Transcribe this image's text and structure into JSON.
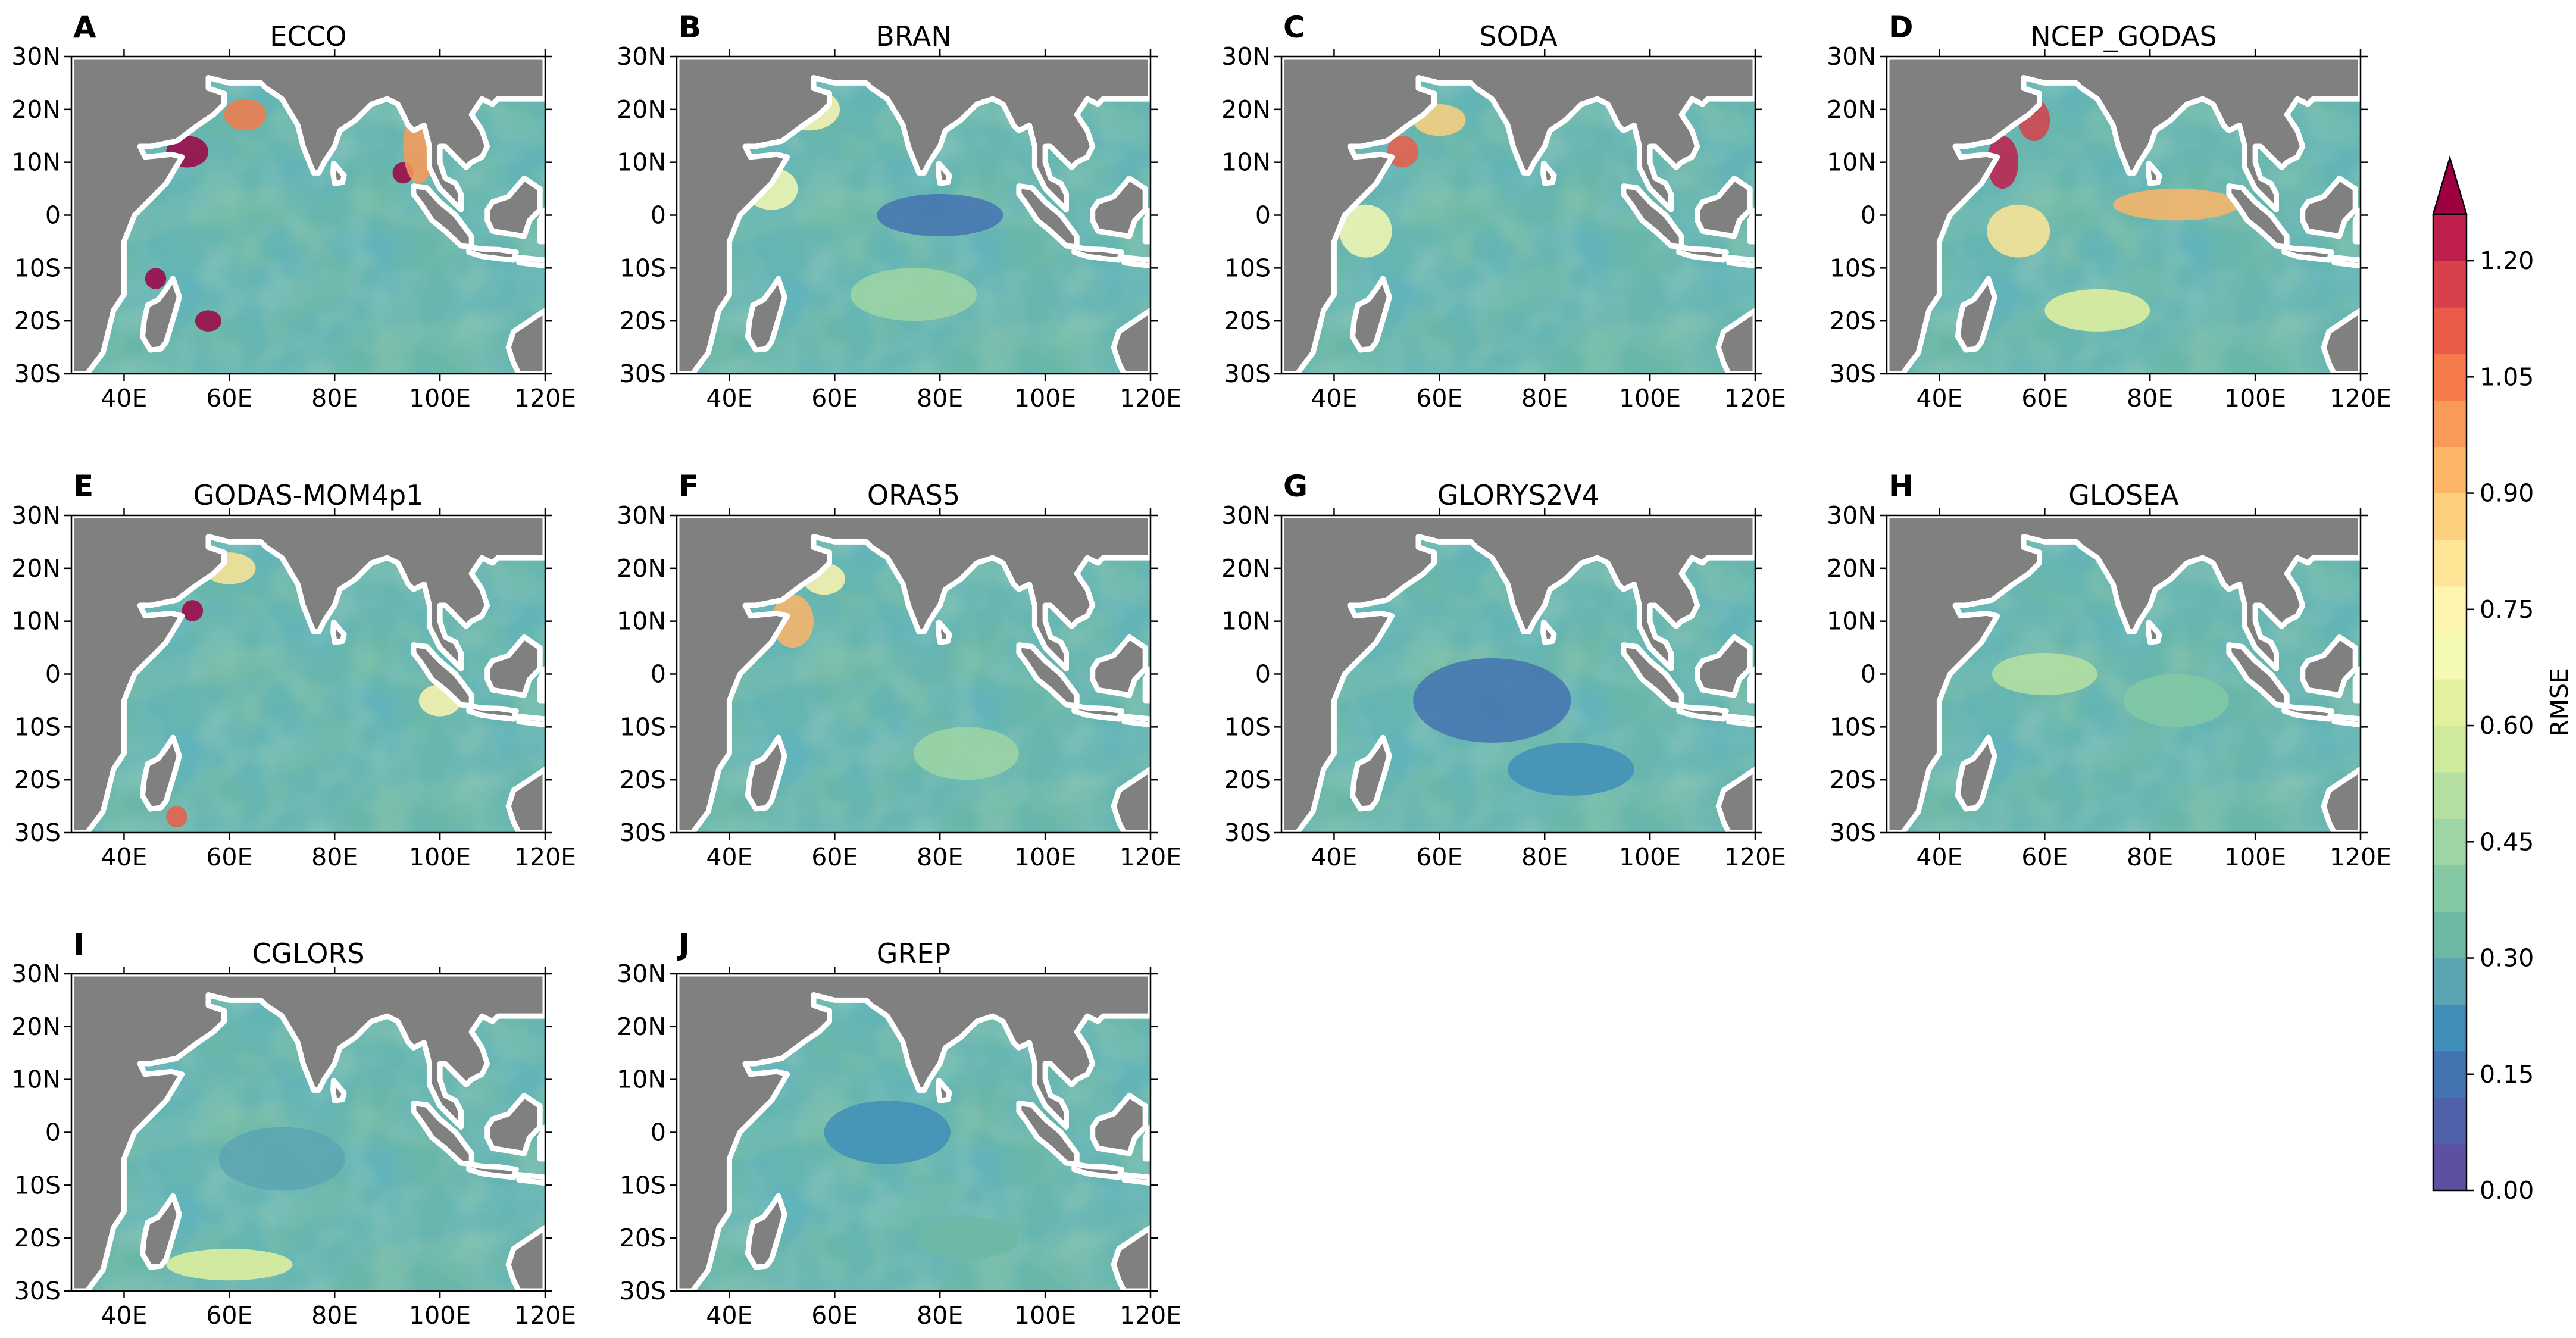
{
  "figure": {
    "colorbar": {
      "label": "RMSE",
      "ticks": [
        "0.00",
        "0.15",
        "0.30",
        "0.45",
        "0.60",
        "0.75",
        "0.90",
        "1.05",
        "1.20"
      ],
      "min": 0.0,
      "max": 1.26,
      "levels": 21,
      "extend": "max",
      "colors": [
        "#5e4fa2",
        "#4f61aa",
        "#4473b2",
        "#3f8fb9",
        "#5aa5b1",
        "#6cb8a4",
        "#84c9a3",
        "#9dd5a4",
        "#b6e0a2",
        "#cdea9f",
        "#e3f19e",
        "#f4f9b4",
        "#fef5b0",
        "#fee595",
        "#fdd07f",
        "#fdb567",
        "#fa9a58",
        "#f57b4a",
        "#ea5c49",
        "#d8404c",
        "#be1f4c",
        "#9e0142"
      ]
    },
    "map": {
      "lon_ticks": [
        "40E",
        "60E",
        "80E",
        "100E",
        "120E"
      ],
      "lat_ticks": [
        "30N",
        "20N",
        "10N",
        "0",
        "10S",
        "20S",
        "30S"
      ],
      "land_color": "#808080",
      "coast_color": "#ffffff"
    },
    "panels": [
      {
        "letter": "A",
        "title": "ECCO"
      },
      {
        "letter": "B",
        "title": "BRAN"
      },
      {
        "letter": "C",
        "title": "SODA"
      },
      {
        "letter": "D",
        "title": "NCEP_GODAS"
      },
      {
        "letter": "E",
        "title": "GODAS-MOM4p1"
      },
      {
        "letter": "F",
        "title": "ORAS5"
      },
      {
        "letter": "G",
        "title": "GLORYS2V4"
      },
      {
        "letter": "H",
        "title": "GLOSEA"
      },
      {
        "letter": "I",
        "title": "CGLORS"
      },
      {
        "letter": "J",
        "title": "GREP"
      }
    ]
  }
}
